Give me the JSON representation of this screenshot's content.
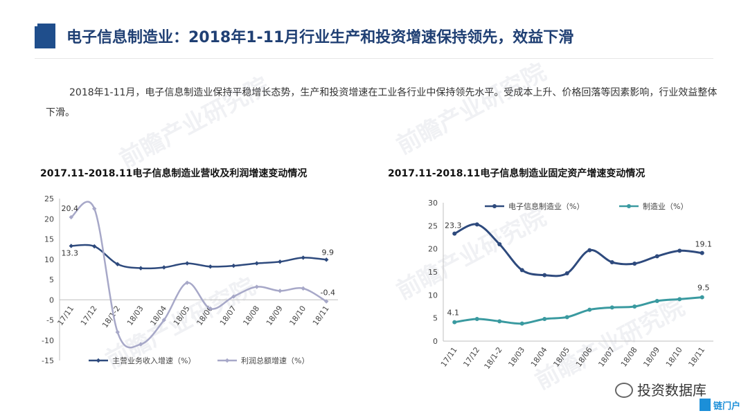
{
  "header": {
    "title": "电子信息制造业：2018年1-11月行业生产和投资增速保持领先，效益下滑"
  },
  "intro": {
    "text": "2018年1-11月，电子信息制造业保持平稳增长态势，生产和投资增速在工业各行业中保持领先水平。受成本上升、价格回落等因素影响，行业效益整体下滑。"
  },
  "watermark": {
    "text": "前瞻产业研究院"
  },
  "footer": {
    "source": "投资数据库",
    "logo_text": "链门户"
  },
  "colors": {
    "title": "#1f3f73",
    "series_a": "#2e4a7d",
    "series_b": "#a7a8c8",
    "series_c": "#3a9aa0"
  },
  "chart_data": [
    {
      "type": "line",
      "title": "2017.11-2018.11电子信息制造业营收及利润增速变动情况",
      "categories": [
        "17/11",
        "17/12",
        "18/1-2",
        "18/03",
        "18/04",
        "18/05",
        "18/06",
        "18/07",
        "18/08",
        "18/09",
        "18/10",
        "18/11"
      ],
      "ylim": [
        -15,
        25
      ],
      "yticks": [
        -15,
        -10,
        -5,
        0,
        5,
        10,
        15,
        20,
        25
      ],
      "grid": false,
      "legend": "bottom",
      "series": [
        {
          "name": "主营业务收入增速（%）",
          "values": [
            13.3,
            13.2,
            8.8,
            7.8,
            8.0,
            9.0,
            8.2,
            8.4,
            9.0,
            9.4,
            10.4,
            9.9
          ]
        },
        {
          "name": "利润总额增速（%）",
          "values": [
            20.4,
            22.5,
            -8.0,
            -11.0,
            -5.0,
            4.2,
            -2.2,
            0.8,
            3.2,
            2.2,
            2.8,
            -0.4
          ]
        }
      ],
      "annotations": [
        {
          "series": 1,
          "index": 0,
          "text": "20.4"
        },
        {
          "series": 0,
          "index": 0,
          "text": "13.3"
        },
        {
          "series": 0,
          "index": 11,
          "text": "9.9"
        },
        {
          "series": 1,
          "index": 11,
          "text": "-0.4"
        }
      ]
    },
    {
      "type": "line",
      "title": "2017.11-2018.11电子信息制造业固定资产增速变动情况",
      "categories": [
        "17/11",
        "17/12",
        "18/1-2",
        "18/03",
        "18/04",
        "18/05",
        "18/06",
        "18/07",
        "18/08",
        "18/09",
        "18/10",
        "18/11"
      ],
      "ylim": [
        0,
        30
      ],
      "yticks": [
        0,
        5,
        10,
        15,
        20,
        25,
        30
      ],
      "grid": false,
      "legend": "top",
      "series": [
        {
          "name": "电子信息制造业（%）",
          "values": [
            23.3,
            25.3,
            21.0,
            15.4,
            14.3,
            14.7,
            19.7,
            17.1,
            16.8,
            18.4,
            19.6,
            19.1
          ]
        },
        {
          "name": "制造业（%）",
          "values": [
            4.1,
            4.8,
            4.3,
            3.8,
            4.8,
            5.2,
            6.8,
            7.3,
            7.5,
            8.7,
            9.1,
            9.5
          ]
        }
      ],
      "annotations": [
        {
          "series": 0,
          "index": 0,
          "text": "23.3"
        },
        {
          "series": 0,
          "index": 11,
          "text": "19.1"
        },
        {
          "series": 1,
          "index": 0,
          "text": "4.1"
        },
        {
          "series": 1,
          "index": 11,
          "text": "9.5"
        }
      ]
    }
  ]
}
